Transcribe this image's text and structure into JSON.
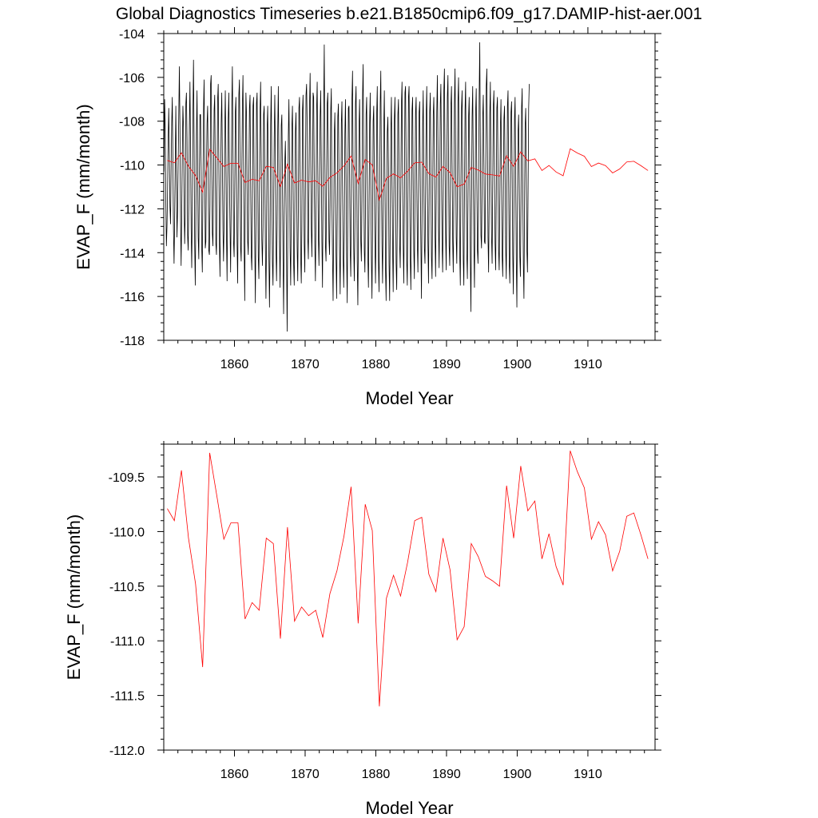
{
  "title": "Global Diagnostics Timeseries b.e21.B1850cmip6.f09_g17.DAMIP-hist-aer.001",
  "colors": {
    "monthly": "#000000",
    "annual": "#ff0000",
    "frame": "#000000",
    "background": "#ffffff"
  },
  "chart_data": [
    {
      "type": "line",
      "ylabel": "EVAP_F (mm/month)",
      "xlabel": "Model Year",
      "xlim": [
        1850,
        1919.5
      ],
      "ylim": [
        -118,
        -104
      ],
      "xticks": [
        1860,
        1870,
        1880,
        1890,
        1900,
        1910
      ],
      "xtick_labels": [
        "1860",
        "1870",
        "1880",
        "1890",
        "1900",
        "1910"
      ],
      "yticks": [
        -118,
        -116,
        -114,
        -112,
        -110,
        -108,
        -106,
        -104
      ],
      "ytick_labels": [
        "-118",
        "-116",
        "-114",
        "-112",
        "-110",
        "-108",
        "-106",
        "-104"
      ],
      "grid": false,
      "series": [
        {
          "color": "#000000",
          "x_start": 1850.04,
          "x_step": 0.08333,
          "values": [
            -110.3,
            -107,
            -108.2,
            -111.6,
            -113.7,
            -112.8,
            -111.1,
            -108.8,
            -107.4,
            -109.5,
            -111.9,
            -112.7,
            -110.2,
            -108.1,
            -106.9,
            -109.7,
            -112.9,
            -114.5,
            -112.6,
            -109.8,
            -107.3,
            -110.4,
            -113.3,
            -112.1,
            -109.9,
            -107.7,
            -105.5,
            -108.2,
            -112.4,
            -114.6,
            -112.3,
            -109.4,
            -107.3,
            -108.3,
            -111.6,
            -113.6,
            -112.2,
            -107.2,
            -106.7,
            -108.8,
            -113.2,
            -113.9,
            -111.8,
            -108.2,
            -106.2,
            -109.3,
            -112.9,
            -114.7,
            -111.9,
            -107.8,
            -105.2,
            -108.7,
            -113.6,
            -115.5,
            -112.3,
            -108.6,
            -106.6,
            -109.9,
            -113.3,
            -114.3,
            -110.3,
            -107.7,
            -107.7,
            -110.2,
            -113.8,
            -114.9,
            -111.3,
            -107.5,
            -106.1,
            -109.8,
            -113.8,
            -113.5,
            -110.1,
            -108.1,
            -107.3,
            -110.3,
            -113.9,
            -114.1,
            -111.8,
            -106.3,
            -105.9,
            -109.7,
            -113.1,
            -113.7,
            -110.9,
            -107.5,
            -106.8,
            -110.3,
            -113.6,
            -114.1,
            -110.7,
            -107,
            -106.3,
            -109.6,
            -113.6,
            -115.1,
            -111.3,
            -108.1,
            -106.7,
            -109.6,
            -112.9,
            -114.4,
            -112.5,
            -108.6,
            -106.6,
            -109.3,
            -113.2,
            -115.3,
            -111.4,
            -107.9,
            -106.7,
            -110.4,
            -112.8,
            -114.9,
            -111.8,
            -107.3,
            -105.5,
            -109.2,
            -113.5,
            -114.2,
            -111.5,
            -107.6,
            -106.9,
            -110.5,
            -113.6,
            -115.4,
            -111.2,
            -106.8,
            -106.1,
            -109.9,
            -113.8,
            -114.4,
            -110.4,
            -107.3,
            -105.9,
            -109.9,
            -113.7,
            -116.2,
            -111.1,
            -106.7,
            -107.7,
            -111.1,
            -113.5,
            -114.1,
            -110.8,
            -107.4,
            -106.8,
            -110.7,
            -114.1,
            -114.8,
            -111.8,
            -107.3,
            -106.9,
            -110.7,
            -113.5,
            -116.3,
            -112.6,
            -107.2,
            -106.7,
            -110.5,
            -114.2,
            -115.2,
            -111.2,
            -107.5,
            -106.2,
            -109.8,
            -113.4,
            -114.6,
            -112.8,
            -107.7,
            -107.3,
            -110,
            -113.6,
            -116.1,
            -113.5,
            -108.3,
            -107.3,
            -110.7,
            -114.2,
            -116.5,
            -113.6,
            -108.2,
            -106.4,
            -110.4,
            -114.4,
            -115.5,
            -112.1,
            -108.8,
            -106.8,
            -109.5,
            -113.8,
            -115.3,
            -112.8,
            -108.4,
            -106.4,
            -109.8,
            -113.4,
            -115.6,
            -112.6,
            -108.2,
            -107.7,
            -110.6,
            -114.2,
            -116.8,
            -112.4,
            -109.9,
            -108.9,
            -111.3,
            -114.2,
            -117.6,
            -113.1,
            -108.7,
            -107,
            -109.9,
            -113.8,
            -115.5,
            -112.2,
            -108.3,
            -107.3,
            -110.4,
            -114.5,
            -115.5,
            -112.1,
            -108.5,
            -107.6,
            -110.4,
            -113.8,
            -115.3,
            -111.8,
            -107.4,
            -106.9,
            -110.1,
            -114.2,
            -115.4,
            -112.8,
            -107.5,
            -106.8,
            -110.2,
            -113.6,
            -114.9,
            -110.9,
            -106.8,
            -106.3,
            -108.2,
            -113.3,
            -114.3,
            -111.1,
            -107.3,
            -105.8,
            -109.1,
            -112.9,
            -114.2,
            -111.1,
            -106.7,
            -106.9,
            -110.5,
            -113.6,
            -115.3,
            -112.1,
            -107.5,
            -106.2,
            -109.9,
            -113.3,
            -114.6,
            -111.4,
            -107.8,
            -106.6,
            -109.9,
            -113.5,
            -115.6,
            -111.2,
            -107.5,
            -104.5,
            -109.6,
            -113.7,
            -114.4,
            -110.6,
            -107.2,
            -106.7,
            -110.3,
            -113.4,
            -114.1,
            -111.4,
            -107.5,
            -106.5,
            -111.6,
            -114.1,
            -116.2,
            -112.9,
            -108.6,
            -107.6,
            -110.8,
            -114.2,
            -116.1,
            -112.4,
            -107.8,
            -107.2,
            -110.5,
            -113.9,
            -115.9,
            -112.6,
            -108.1,
            -107.1,
            -110.7,
            -114.1,
            -115.6,
            -113.1,
            -108.6,
            -107,
            -110.4,
            -114.2,
            -116.3,
            -111.7,
            -107.4,
            -107.3,
            -110.4,
            -113.9,
            -115.1,
            -111.4,
            -107,
            -105.7,
            -110.3,
            -113.8,
            -115.3,
            -112.6,
            -107.2,
            -106.4,
            -109.9,
            -114.4,
            -116.4,
            -113.1,
            -108.3,
            -107,
            -110.1,
            -113.5,
            -114.4,
            -111.6,
            -106.9,
            -105.4,
            -109.6,
            -113.9,
            -114.9,
            -111.7,
            -107.7,
            -106.9,
            -110.4,
            -114.2,
            -115.6,
            -112.4,
            -108.1,
            -106.7,
            -110.6,
            -114.2,
            -116.1,
            -112.9,
            -108,
            -107.3,
            -110.4,
            -113.5,
            -115.4,
            -112.6,
            -107.7,
            -106.4,
            -110.4,
            -114.4,
            -115.8,
            -112,
            -107.2,
            -105.7,
            -110.2,
            -113.6,
            -115.4,
            -112.2,
            -108.3,
            -106.6,
            -110.5,
            -114.8,
            -116.2,
            -112.1,
            -108.5,
            -107.8,
            -110.1,
            -114.5,
            -116.2,
            -112.7,
            -108.5,
            -106.9,
            -110.5,
            -113.8,
            -115.8,
            -112.1,
            -107.9,
            -106.9,
            -110.7,
            -114.5,
            -115.7,
            -112.4,
            -107.7,
            -107,
            -110.4,
            -113.7,
            -114.7,
            -110.9,
            -107.2,
            -106.2,
            -110.6,
            -113.6,
            -115.4,
            -111.8,
            -106.7,
            -106.4,
            -110.1,
            -114.4,
            -115.5,
            -111.6,
            -106.9,
            -106.4,
            -110.6,
            -114.3,
            -115.7,
            -112.3,
            -107.5,
            -106.9,
            -110.9,
            -113.9,
            -115.2,
            -111.3,
            -107.6,
            -106.9,
            -110.7,
            -113.6,
            -114.9,
            -111.4,
            -107.6,
            -107.1,
            -110.7,
            -113.5,
            -116.1,
            -112.1,
            -108.2,
            -106.6,
            -110.5,
            -113.8,
            -114.5,
            -111.5,
            -107.7,
            -106.4,
            -110.6,
            -113.6,
            -115.4,
            -111.6,
            -107.6,
            -106.7,
            -110.1,
            -114.2,
            -115.2,
            -111.5,
            -107.7,
            -106.9,
            -109.3,
            -113.1,
            -115.1,
            -111.7,
            -107.6,
            -105.9,
            -109.1,
            -112.8,
            -114.7,
            -111.4,
            -107.2,
            -106.3,
            -110,
            -113.6,
            -114.9,
            -111.5,
            -106.6,
            -105.6,
            -109.5,
            -113.1,
            -114.8,
            -110.5,
            -106.9,
            -105.9,
            -109.8,
            -113.7,
            -114.6,
            -111.3,
            -107.3,
            -106.4,
            -109.9,
            -113.5,
            -114.9,
            -111.3,
            -107.2,
            -105.6,
            -109.1,
            -113.3,
            -114.5,
            -111.4,
            -107.1,
            -106,
            -110.2,
            -114.1,
            -115.5,
            -111.1,
            -107.4,
            -106.6,
            -110.6,
            -114.3,
            -115.5,
            -111.4,
            -107.5,
            -106.2,
            -110.4,
            -114.1,
            -115.2,
            -111.7,
            -107.8,
            -106.9,
            -110.5,
            -114.3,
            -116.7,
            -111.7,
            -107.8,
            -106.4,
            -110.3,
            -113.6,
            -115.6,
            -111.7,
            -107.6,
            -106.5,
            -110.6,
            -113.9,
            -114.5,
            -111.5,
            -106.8,
            -104.4,
            -109.2,
            -113.2,
            -113.8,
            -110.8,
            -107.8,
            -106.8,
            -109.9,
            -113.5,
            -113.6,
            -110.7,
            -106.4,
            -105.6,
            -109.1,
            -113.3,
            -114.9,
            -111.4,
            -107.7,
            -106.2,
            -110.3,
            -113.3,
            -114.5,
            -110.9,
            -107.3,
            -106.6,
            -110.2,
            -113.6,
            -114.8,
            -111.5,
            -107.4,
            -106.9,
            -110.4,
            -113.9,
            -114.8,
            -111.7,
            -108.3,
            -107,
            -110.7,
            -114.2,
            -115.1,
            -111.6,
            -107.9,
            -107.3,
            -110.5,
            -113.8,
            -115.2,
            -111.6,
            -107.3,
            -106.6,
            -110.5,
            -114.5,
            -115.4,
            -111.3,
            -107.6,
            -107.1,
            -110.4,
            -114.1,
            -115.9,
            -111.7,
            -107.9,
            -106.9,
            -110.6,
            -114.3,
            -116.5,
            -112.1,
            -108.5,
            -107.7,
            -110.6,
            -114.2,
            -115.1,
            -111.6,
            -107.4,
            -106.5,
            -110.9,
            -114.5,
            -116.1,
            -111.9,
            -108.2,
            -107.4,
            -110.4,
            -113.9,
            -114.9,
            -111.2,
            -107.4,
            -106.3
          ]
        },
        {
          "color": "#ff0000",
          "x_start": 1850.5,
          "x_step": 1,
          "values": [
            -109.79,
            -109.9,
            -109.44,
            -110.06,
            -110.48,
            -111.24,
            -109.28,
            -109.67,
            -110.07,
            -109.92,
            -109.92,
            -110.8,
            -110.65,
            -110.72,
            -110.06,
            -110.11,
            -110.98,
            -109.96,
            -110.82,
            -110.69,
            -110.77,
            -110.72,
            -110.97,
            -110.57,
            -110.36,
            -110.04,
            -109.59,
            -110.84,
            -109.75,
            -109.99,
            -111.6,
            -110.61,
            -110.4,
            -110.59,
            -110.28,
            -109.9,
            -109.87,
            -110.39,
            -110.55,
            -110.06,
            -110.35,
            -110.99,
            -110.87,
            -110.11,
            -110.23,
            -110.41,
            -110.45,
            -110.5,
            -109.58,
            -110.06,
            -109.4,
            -109.81,
            -109.72,
            -110.25,
            -110.02,
            -110.32,
            -110.49,
            -109.26,
            -109.45,
            -109.6,
            -110.07,
            -109.91,
            -110.03,
            -110.36,
            -110.18,
            -109.86,
            -109.83,
            -110.03,
            -110.25
          ]
        }
      ]
    },
    {
      "type": "line",
      "ylabel": "EVAP_F (mm/month)",
      "xlabel": "Model Year",
      "xlim": [
        1850,
        1919.5
      ],
      "ylim": [
        -112,
        -109.2
      ],
      "xticks": [
        1860,
        1870,
        1880,
        1890,
        1900,
        1910
      ],
      "xtick_labels": [
        "1860",
        "1870",
        "1880",
        "1890",
        "1900",
        "1910"
      ],
      "yticks": [
        -112,
        -111.5,
        -111,
        -110.5,
        -110,
        -109.5
      ],
      "ytick_labels": [
        "-112.0",
        "-111.5",
        "-111.0",
        "-110.5",
        "-110.0",
        "-109.5"
      ],
      "grid": false,
      "series": [
        {
          "color": "#ff0000",
          "x_start": 1850.5,
          "x_step": 1,
          "values": [
            -109.79,
            -109.9,
            -109.44,
            -110.06,
            -110.48,
            -111.24,
            -109.28,
            -109.67,
            -110.07,
            -109.92,
            -109.92,
            -110.8,
            -110.65,
            -110.72,
            -110.06,
            -110.11,
            -110.98,
            -109.96,
            -110.82,
            -110.69,
            -110.77,
            -110.72,
            -110.97,
            -110.57,
            -110.36,
            -110.04,
            -109.59,
            -110.84,
            -109.75,
            -109.99,
            -111.6,
            -110.61,
            -110.4,
            -110.59,
            -110.28,
            -109.9,
            -109.87,
            -110.39,
            -110.55,
            -110.06,
            -110.35,
            -110.99,
            -110.87,
            -110.11,
            -110.23,
            -110.41,
            -110.45,
            -110.5,
            -109.58,
            -110.06,
            -109.4,
            -109.81,
            -109.72,
            -110.25,
            -110.02,
            -110.32,
            -110.49,
            -109.26,
            -109.45,
            -109.6,
            -110.07,
            -109.91,
            -110.03,
            -110.36,
            -110.18,
            -109.86,
            -109.83,
            -110.03,
            -110.25
          ]
        }
      ]
    }
  ]
}
